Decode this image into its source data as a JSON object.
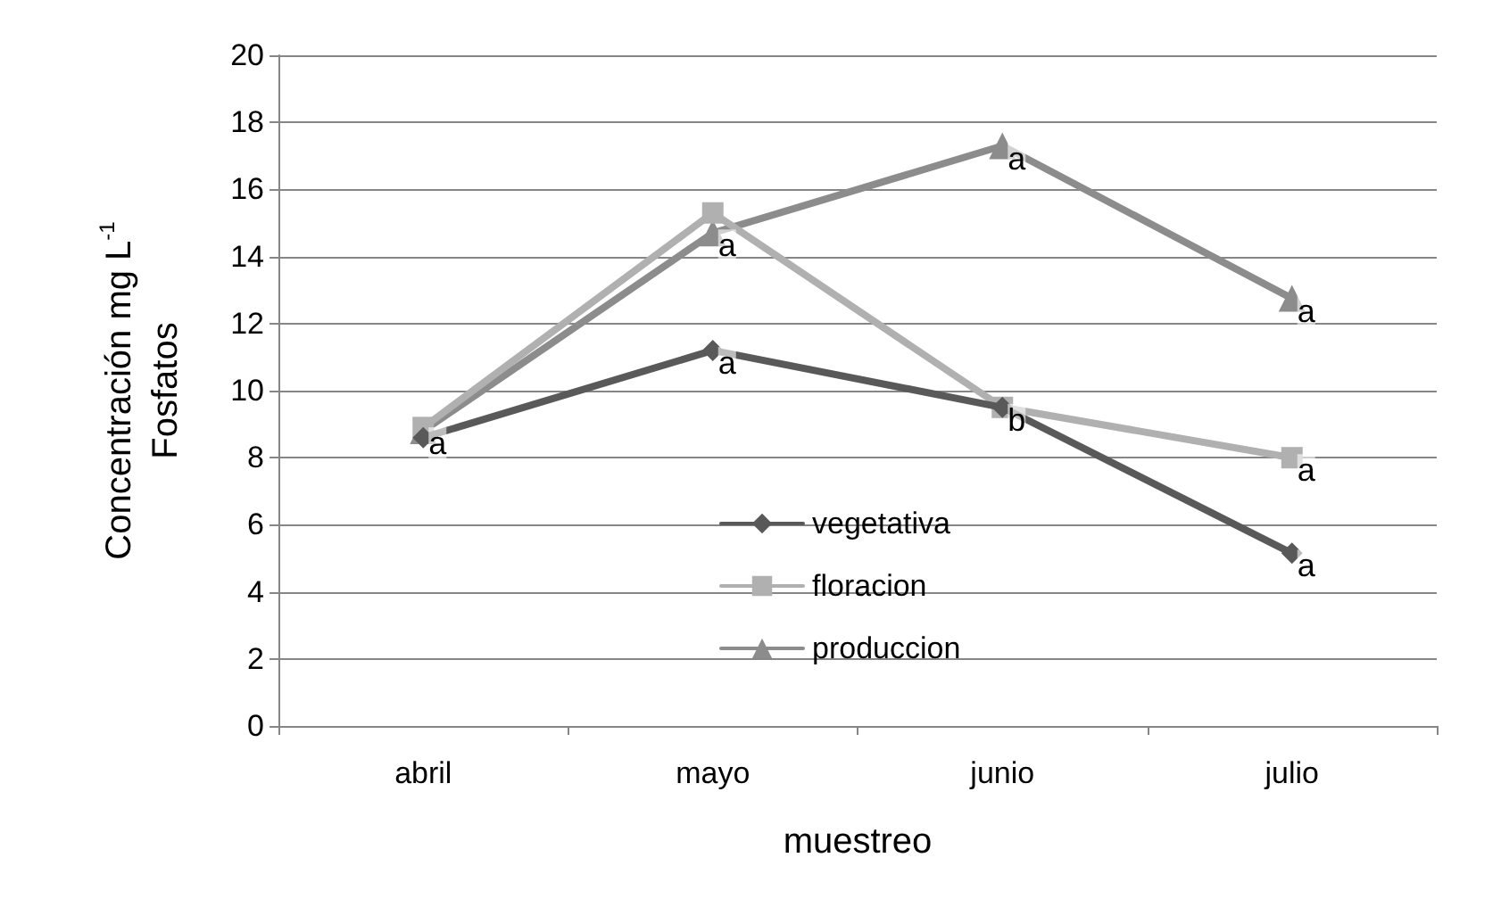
{
  "chart_data": {
    "type": "line",
    "xlabel": "muestreo",
    "ylabel": "Concentración mg L$^{-1}$\nFosfatos",
    "categories": [
      "abril",
      "mayo",
      "junio",
      "julio"
    ],
    "series": [
      {
        "name": "vegetativa",
        "color": "#595959",
        "marker": "diamond",
        "values": [
          8.6,
          11.2,
          9.5,
          5.15
        ]
      },
      {
        "name": "floracion",
        "color": "#b0b0b0",
        "marker": "square",
        "values": [
          8.9,
          15.3,
          9.5,
          8.0
        ]
      },
      {
        "name": "produccion",
        "color": "#8c8c8c",
        "marker": "triangle",
        "values": [
          8.8,
          14.7,
          17.3,
          12.75
        ]
      }
    ],
    "annotations": [
      {
        "text": "a",
        "x": "abril",
        "y": 8.8
      },
      {
        "text": "a",
        "x": "mayo",
        "y": 11.2
      },
      {
        "text": "a",
        "x": "mayo",
        "y": 14.7
      },
      {
        "text": "a",
        "x": "junio",
        "y": 17.3
      },
      {
        "text": "b",
        "x": "junio",
        "y": 9.5
      },
      {
        "text": "a",
        "x": "julio",
        "y": 12.75
      },
      {
        "text": "a",
        "x": "julio",
        "y": 8.0
      },
      {
        "text": "a",
        "x": "julio",
        "y": 5.15
      }
    ],
    "ylim": [
      0,
      20
    ],
    "yticks": [
      0,
      2,
      4,
      6,
      8,
      10,
      12,
      14,
      16,
      18,
      20
    ],
    "grid": "y",
    "legend": "bottom",
    "line_style": "solid"
  }
}
